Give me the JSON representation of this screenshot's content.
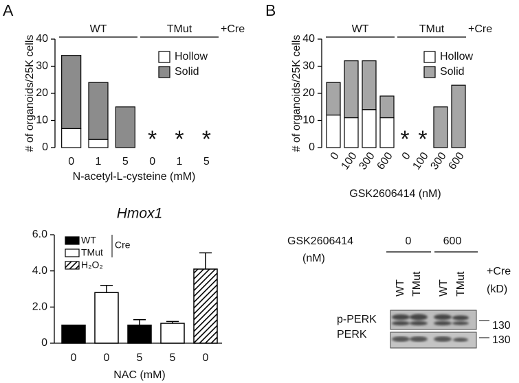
{
  "panel_labels": [
    "A",
    "B"
  ],
  "chart_data": [
    {
      "type": "stacked-bar",
      "ylabel": "# of organoids/25K cells",
      "xlabel": "N-acetyl-L-cysteine (mM)",
      "categories": [
        "0",
        "1",
        "5",
        "0",
        "1",
        "5"
      ],
      "category_groups": [
        "WT",
        "WT",
        "WT",
        "TMut",
        "TMut",
        "TMut"
      ],
      "group_suffix": "+Cre",
      "annotations": [
        null,
        null,
        null,
        "*",
        "*",
        "*"
      ],
      "series": [
        {
          "name": "Hollow",
          "color": "#ffffff",
          "values": [
            7,
            3,
            0,
            0,
            0,
            0
          ]
        },
        {
          "name": "Solid",
          "color": "#8c8c8c",
          "values": [
            27,
            21,
            15,
            0,
            0,
            0
          ]
        }
      ],
      "ylim": [
        0,
        40
      ],
      "yticks": [
        0,
        10,
        20,
        30,
        40
      ],
      "grid": false,
      "legend": "top-right",
      "rotate_x_labels": false
    },
    {
      "type": "stacked-bar",
      "ylabel": "# of organoids/25K cells",
      "xlabel": "GSK2606414 (nM)",
      "categories": [
        "0",
        "100",
        "300",
        "600",
        "0",
        "100",
        "300",
        "600"
      ],
      "category_groups": [
        "WT",
        "WT",
        "WT",
        "WT",
        "TMut",
        "TMut",
        "TMut",
        "TMut"
      ],
      "group_suffix": "+Cre",
      "annotations": [
        null,
        null,
        null,
        null,
        "*",
        "*",
        null,
        null
      ],
      "series": [
        {
          "name": "Hollow",
          "color": "#ffffff",
          "values": [
            12,
            11,
            14,
            11,
            0,
            0,
            0,
            0
          ]
        },
        {
          "name": "Solid",
          "color": "#a6a6a6",
          "values": [
            12,
            21,
            18,
            8,
            0,
            0,
            15,
            23
          ]
        }
      ],
      "ylim": [
        0,
        40
      ],
      "yticks": [
        0,
        10,
        20,
        30,
        40
      ],
      "grid": false,
      "legend": "top-right",
      "rotate_x_labels": true
    },
    {
      "type": "bar",
      "title": "Hmox1",
      "xlabel": "NAC (mM)",
      "categories": [
        "0",
        "0",
        "5",
        "5",
        "0"
      ],
      "values": [
        1.0,
        2.8,
        1.0,
        1.1,
        4.1
      ],
      "errors": [
        null,
        0.4,
        0.3,
        0.1,
        0.9
      ],
      "bar_keys": [
        "WT",
        "TMut",
        "WT",
        "TMut",
        "H₂O₂"
      ],
      "legend_items": [
        {
          "name": "WT",
          "color": "#000000"
        },
        {
          "name": "TMut",
          "color": "#ffffff"
        },
        {
          "name": "H₂O₂",
          "color": "hatch"
        }
      ],
      "legend_note": "Cre",
      "ylim": [
        0,
        6
      ],
      "yticks": [
        0,
        {
          "value": 2,
          "label": "2.0"
        },
        {
          "value": 4,
          "label": "4.0"
        },
        {
          "value": 6,
          "label": "6.0"
        }
      ],
      "grid": false,
      "legend": "top-left"
    }
  ],
  "blot": {
    "treatment": "GSK2606414",
    "unit": "(nM)",
    "doses": [
      "0",
      "600"
    ],
    "lanes": [
      "WT",
      "TMut",
      "WT",
      "TMut"
    ],
    "lane_suffix": "+Cre",
    "size_unit": "(kD)",
    "rows": [
      {
        "label": "p-PERK",
        "marker": 130
      },
      {
        "label": "PERK",
        "marker": 130
      }
    ]
  }
}
